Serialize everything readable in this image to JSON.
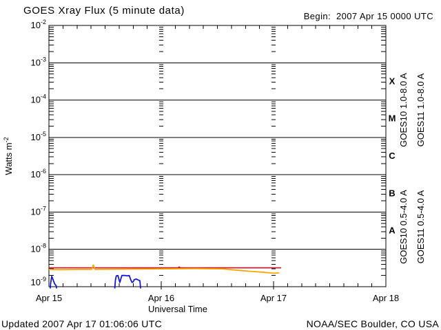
{
  "header": {
    "title": "GOES Xray Flux (5 minute data)",
    "begin_label": "Begin:  2007 Apr 15 0000 UTC"
  },
  "footer": {
    "updated": "Updated 2007 Apr 17 01:06:06 UTC",
    "source": "NOAA/SEC Boulder, CO USA"
  },
  "chart_data": {
    "type": "line",
    "title": "GOES Xray Flux (5 minute data)",
    "begin_label": "Begin:  2007 Apr 15 0000 UTC",
    "xlabel": "Universal Time",
    "ylabel": {
      "text": "Watts m",
      "sup": "-2"
    },
    "x_axis": {
      "days": 3,
      "tick_labels": [
        "Apr 15",
        "Apr 16",
        "Apr 17",
        "Apr 18"
      ],
      "minor_tick_hours": 3,
      "interior_day_lines": [
        1,
        2
      ]
    },
    "y_axis": {
      "scale": "log",
      "top_exponent": -2,
      "bottom_exponent": -9,
      "tick_base": "10",
      "tick_exponents": [
        "-2",
        "-3",
        "-4",
        "-5",
        "-6",
        "-7",
        "-8",
        "-9"
      ]
    },
    "flare_classes": [
      "X",
      "M",
      "C",
      "B",
      "A"
    ],
    "grid": "solid horizontal decade lines, dashed vertical day columns",
    "colors": {
      "axis": "#000000",
      "background": "#ffffff"
    },
    "series": [
      {
        "name": "GOES10 1.0-8.0 A",
        "color": "#6633CC",
        "points": [
          [
            0,
            3.2e-09
          ],
          [
            2.067,
            3.2e-09
          ]
        ]
      },
      {
        "name": "GOES11 1.0-8.0 A",
        "color": "#E60000",
        "points": [
          [
            0,
            3.2e-09
          ],
          [
            1.15,
            3.2e-09
          ],
          [
            1.16,
            3.4e-09
          ],
          [
            1.17,
            3.2e-09
          ],
          [
            2.067,
            3.2e-09
          ]
        ]
      },
      {
        "name": "GOES10 0.5-4.0 A",
        "color": "#FFA500",
        "points": [
          [
            0,
            2.9e-09
          ],
          [
            0.1,
            2.85e-09
          ],
          [
            0.25,
            2.9e-09
          ],
          [
            0.38,
            2.9e-09
          ],
          [
            0.395,
            3.8e-09
          ],
          [
            0.41,
            2.9e-09
          ],
          [
            0.7,
            2.95e-09
          ],
          [
            1.0,
            3e-09
          ],
          [
            1.3,
            3.05e-09
          ],
          [
            1.55,
            3e-09
          ],
          [
            1.65,
            2.8e-09
          ],
          [
            1.78,
            2.6e-09
          ],
          [
            1.9,
            2.45e-09
          ],
          [
            2.0,
            2.3e-09
          ],
          [
            2.05,
            2.35e-09
          ]
        ]
      },
      {
        "name": "GOES11 0.5-4.0 A",
        "color": "#1414E6",
        "points": [
          [
            0.005,
            5e-10
          ],
          [
            0.015,
            1.2e-09
          ],
          [
            0.025,
            1.9e-09
          ],
          [
            0.035,
            1.6e-09
          ],
          [
            0.05,
            1.2e-09
          ],
          [
            0.065,
            1.05e-09
          ],
          [
            0.08,
            5e-10
          ],
          [
            0.58,
            5e-10
          ],
          [
            0.592,
            1.5e-09
          ],
          [
            0.6,
            1.95e-09
          ],
          [
            0.615,
            2e-09
          ],
          [
            0.625,
            1.5e-09
          ],
          [
            0.632,
            1.3e-09
          ],
          [
            0.64,
            1.6e-09
          ],
          [
            0.65,
            2e-09
          ],
          [
            0.68,
            2e-09
          ],
          [
            0.7,
            1.95e-09
          ],
          [
            0.715,
            2e-09
          ],
          [
            0.73,
            1.5e-09
          ],
          [
            0.74,
            1.3e-09
          ],
          [
            0.75,
            1.35e-09
          ],
          [
            0.76,
            1.55e-09
          ],
          [
            0.78,
            1.6e-09
          ],
          [
            0.795,
            1.5e-09
          ],
          [
            0.81,
            1.45e-09
          ],
          [
            0.818,
            8e-10
          ],
          [
            0.825,
            4e-10
          ],
          [
            2.0,
            4e-10
          ]
        ]
      }
    ]
  }
}
